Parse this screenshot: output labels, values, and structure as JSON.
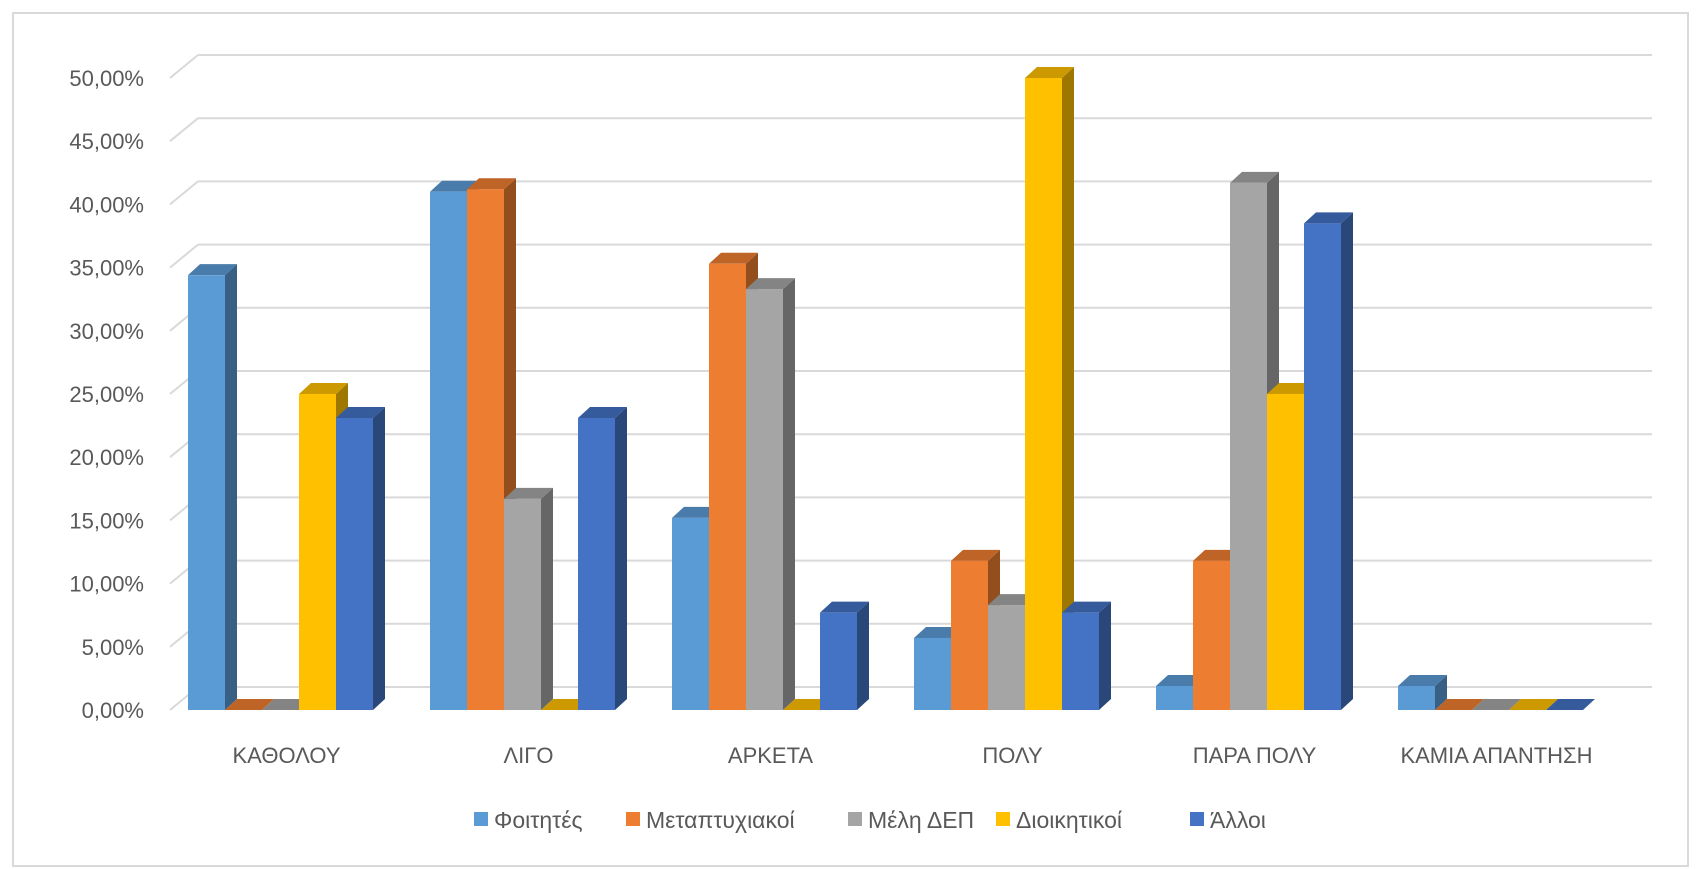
{
  "chart_data": {
    "type": "bar",
    "style": "3d-clustered-column",
    "categories": [
      "ΚΑΘΟΛΟΥ",
      "ΛΙΓΟ",
      "ΑΡΚΕΤΑ",
      "ΠΟΛΥ",
      "ΠΑΡΑ ΠΟΛΥ",
      "ΚΑΜΙΑ ΑΠΑΝΤΗΣΗ"
    ],
    "series": [
      {
        "name": "Φοιτητές",
        "color": "#5B9BD5",
        "values": [
          34.4,
          41.0,
          15.2,
          5.7,
          1.9,
          1.9
        ]
      },
      {
        "name": "Μεταπτυχιακοί",
        "color": "#ED7D31",
        "values": [
          0,
          41.2,
          35.3,
          11.8,
          11.8,
          0
        ]
      },
      {
        "name": "Μέλη ΔΕΠ",
        "color": "#A5A5A5",
        "values": [
          0,
          16.7,
          33.3,
          8.3,
          41.7,
          0
        ]
      },
      {
        "name": "Διοικητικοί",
        "color": "#FFC000",
        "values": [
          25.0,
          0,
          0,
          50.0,
          25.0,
          0
        ]
      },
      {
        "name": "Άλλοι",
        "color": "#4472C4",
        "values": [
          23.1,
          23.1,
          7.7,
          7.7,
          38.5,
          0
        ]
      }
    ],
    "ylim": [
      0,
      50
    ],
    "y_ticks": [
      "0,00%",
      "5,00%",
      "10,00%",
      "15,00%",
      "20,00%",
      "25,00%",
      "30,00%",
      "35,00%",
      "40,00%",
      "45,00%",
      "50,00%"
    ],
    "y_tick_values": [
      0,
      5,
      10,
      15,
      20,
      25,
      30,
      35,
      40,
      45,
      50
    ],
    "grid": true,
    "legend": "bottom",
    "title": "",
    "xlabel": "",
    "ylabel": ""
  }
}
